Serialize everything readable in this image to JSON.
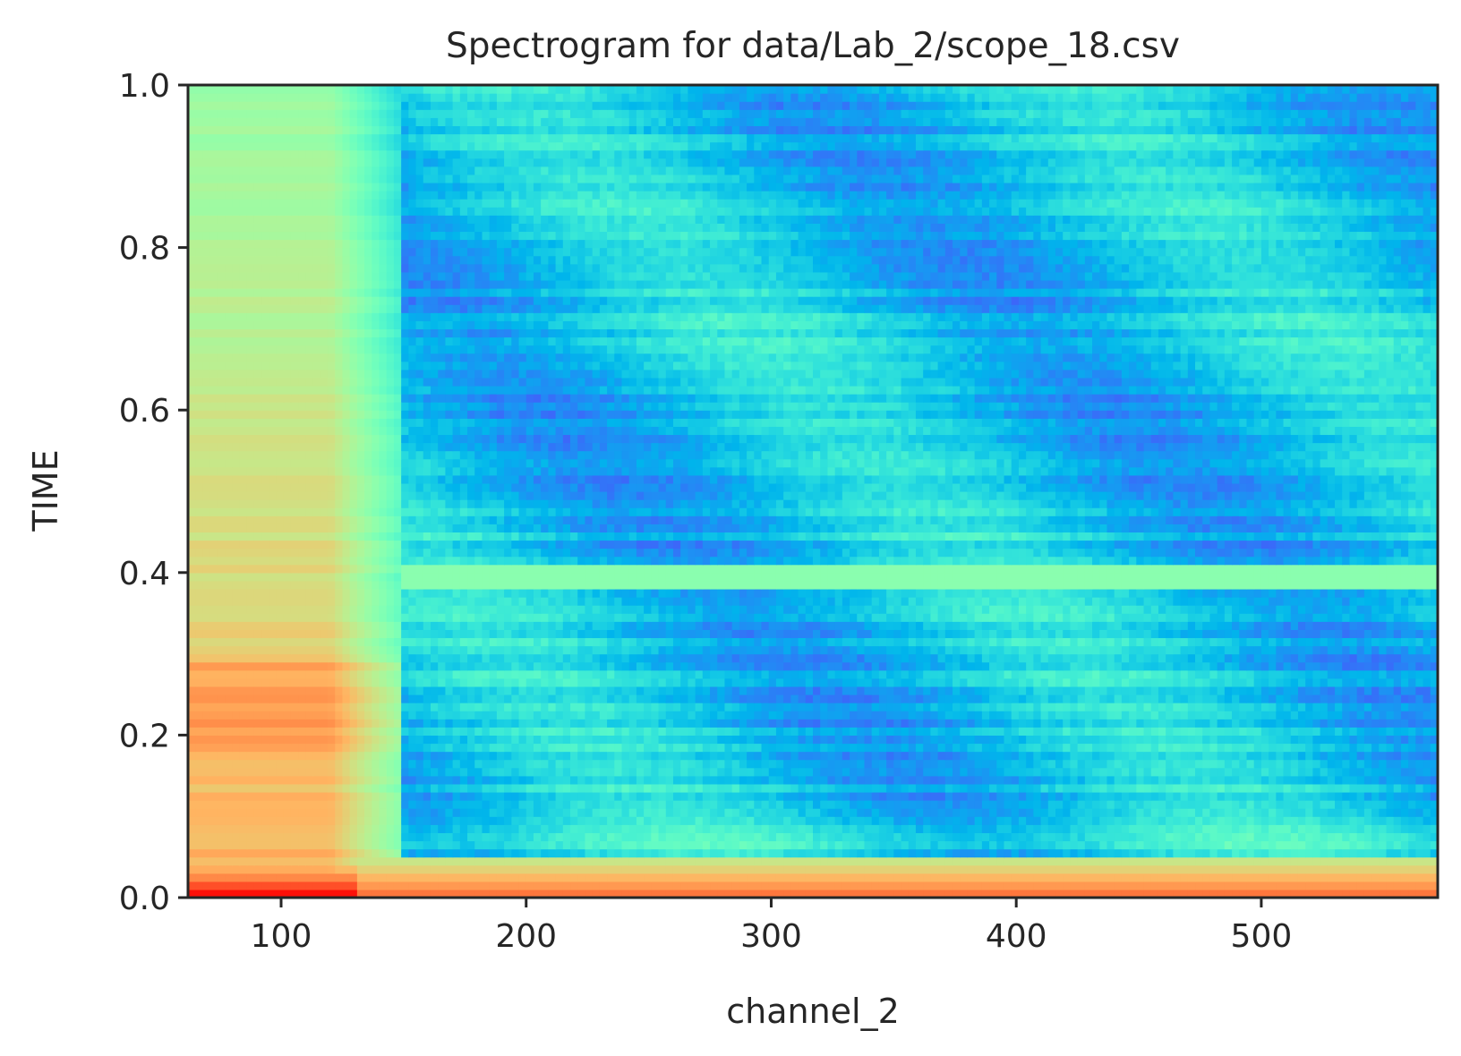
{
  "chart_data": {
    "type": "heatmap",
    "title": "Spectrogram for data/Lab_2/scope_18.csv",
    "xlabel": "channel_2",
    "ylabel": "TIME",
    "xlim": [
      62,
      572
    ],
    "ylim": [
      0.0,
      1.0
    ],
    "x_ticks": [
      100,
      200,
      300,
      400,
      500
    ],
    "x_tick_labels": [
      "100",
      "200",
      "300",
      "400",
      "500"
    ],
    "y_ticks": [
      0.0,
      0.2,
      0.4,
      0.6,
      0.8,
      1.0
    ],
    "y_tick_labels": [
      "0.0",
      "0.2",
      "0.4",
      "0.6",
      "0.8",
      "1.0"
    ],
    "colormap": "rainbow",
    "grid": false,
    "intensity_profile": {
      "description_of_values": "relative intensity 0-1 mapped to rainbow colormap",
      "low_channel_band": {
        "x_range": [
          62,
          145
        ],
        "level_range": [
          0.65,
          0.98
        ]
      },
      "transition_channel": 148,
      "high_channel_band": {
        "x_range": [
          148,
          572
        ],
        "level_range": [
          0.22,
          0.45
        ]
      },
      "bright_time_band": {
        "y_range": [
          0.385,
          0.405
        ],
        "level": 0.52
      },
      "floor_band": {
        "y_range": [
          0.0,
          0.05
        ],
        "level_range": [
          0.62,
          1.0
        ]
      }
    }
  }
}
